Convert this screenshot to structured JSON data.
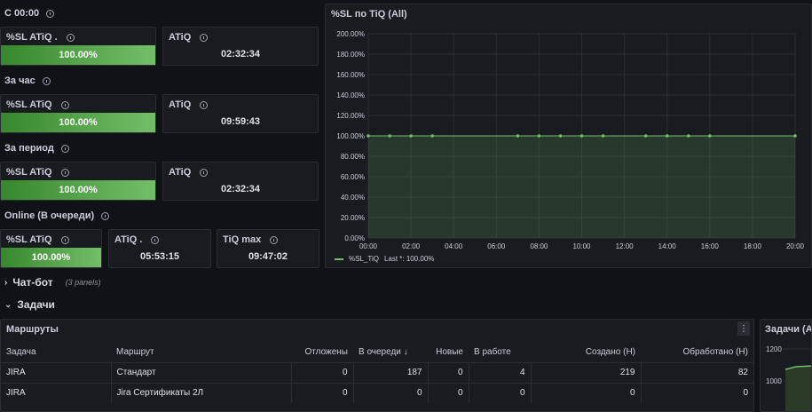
{
  "sections": {
    "s1": "С 00:00",
    "s2": "За час",
    "s3": "За период",
    "s4": "Online (В очереди)"
  },
  "stat_panels": {
    "p1a_title": "%SL ATiQ .",
    "p1a_value": "100.00%",
    "p1b_title": "ATiQ",
    "p1b_value": "02:32:34",
    "p2a_title": "%SL ATiQ",
    "p2a_value": "100.00%",
    "p2b_title": "ATiQ",
    "p2b_value": "09:59:43",
    "p3a_title": "%SL ATiQ",
    "p3a_value": "100.00%",
    "p3b_title": "ATiQ",
    "p3b_value": "02:32:34",
    "p4a_title": "%SL ATiQ",
    "p4a_value": "100.00%",
    "p4b_title": "ATiQ .",
    "p4b_value": "05:53:15",
    "p4c_title": "TiQ max",
    "p4c_value": "09:47:02"
  },
  "graph": {
    "title": "%SL по TiQ (All)",
    "legend_series": "%SL_TiQ",
    "legend_last": "Last *: 100.00%",
    "line_color": "#73bf69"
  },
  "chart_data": {
    "type": "area",
    "title": "%SL по TiQ (All)",
    "y_ticks": [
      "200.00%",
      "180.00%",
      "160.00%",
      "140.00%",
      "120.00%",
      "100.00%",
      "80.00%",
      "60.00%",
      "40.00%",
      "20.00%",
      "0.00%"
    ],
    "x_ticks": [
      "00:00",
      "02:00",
      "04:00",
      "06:00",
      "08:00",
      "10:00",
      "12:00",
      "14:00",
      "16:00",
      "18:00",
      "20:00"
    ],
    "ylim": [
      0,
      200
    ],
    "xlim_hours": [
      0,
      20
    ],
    "series": [
      {
        "name": "%SL_TiQ",
        "x_hours": [
          0,
          1,
          2,
          3,
          7,
          8,
          9,
          10,
          11,
          13,
          14,
          15,
          16,
          20
        ],
        "values": [
          100,
          100,
          100,
          100,
          100,
          100,
          100,
          100,
          100,
          100,
          100,
          100,
          100,
          100
        ]
      }
    ]
  },
  "rows": {
    "chatbot": "Чат-бот",
    "chatbot_note": "(3 panels)",
    "tasks": "Задачи"
  },
  "routes_table": {
    "title": "Маршруты",
    "menu_icon": "vertical-dots",
    "headers": [
      "Задача",
      "Маршрут",
      "Отложены",
      "В очереди",
      "Новые",
      "В работе",
      "Создано (Н)",
      "Обработано (Н)"
    ],
    "sort_indicator": "↓",
    "rows": [
      [
        "JIRA",
        "Стандарт",
        "0",
        "187",
        "0",
        "4",
        "219",
        "82"
      ],
      [
        "JIRA",
        "Jira Сертификаты 2Л",
        "0",
        "0",
        "0",
        "0",
        "0",
        "0"
      ]
    ]
  },
  "tasks_panel": {
    "title": "Задачи (All)",
    "y_ticks": [
      "1200",
      "1000"
    ]
  }
}
